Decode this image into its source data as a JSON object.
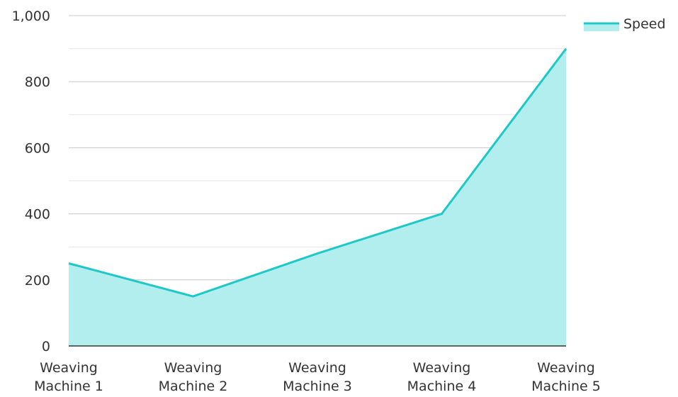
{
  "chart_data": {
    "type": "area",
    "categories": [
      [
        "Weaving",
        "Machine 1"
      ],
      [
        "Weaving",
        "Machine 2"
      ],
      [
        "Weaving",
        "Machine 3"
      ],
      [
        "Weaving",
        "Machine 4"
      ],
      [
        "Weaving",
        "Machine 5"
      ]
    ],
    "series": [
      {
        "name": "Speed",
        "values": [
          250,
          150,
          280,
          400,
          900
        ]
      }
    ],
    "title": "",
    "xlabel": "",
    "ylabel": "",
    "ylim": [
      0,
      1000
    ],
    "y_ticks": [
      "0",
      "200",
      "400",
      "600",
      "800",
      "1,000"
    ],
    "y_tick_values": [
      0,
      200,
      400,
      600,
      800,
      1000
    ],
    "y_minor_step": 100,
    "grid": true,
    "legend": "top-right",
    "colors": {
      "line": "#1fc8c8",
      "fill": "#b2eeee",
      "grid_major": "#c8c8c8",
      "grid_minor": "#e6e6e6",
      "axis": "#333333"
    }
  }
}
